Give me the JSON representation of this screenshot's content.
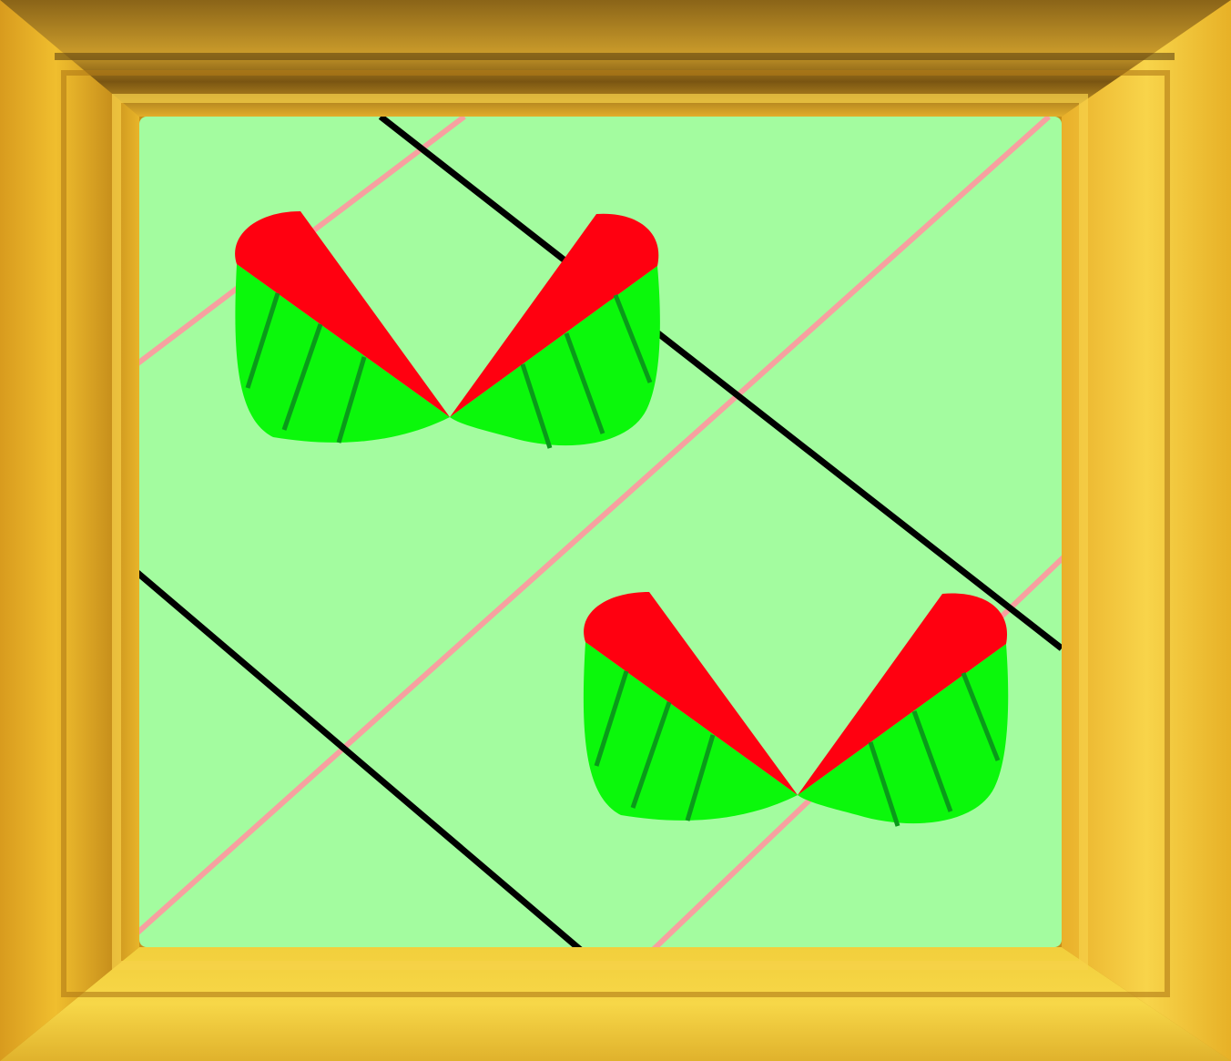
{
  "scene": {
    "description_free": true,
    "colors": {
      "frame_light": "#f5cf3a",
      "frame_mid": "#e0a923",
      "frame_dark": "#a8741a",
      "frame_shadow": "#6b4a14",
      "canvas": "#a3fc9f",
      "pink_line": "#f7a0a0",
      "black_line": "#000000",
      "petal_red": "#ff0010",
      "leaf_green": "#0bf80b",
      "vein_green": "#0a9a1a"
    },
    "icons": [
      "picture-frame",
      "decorative-motif-pair"
    ]
  }
}
